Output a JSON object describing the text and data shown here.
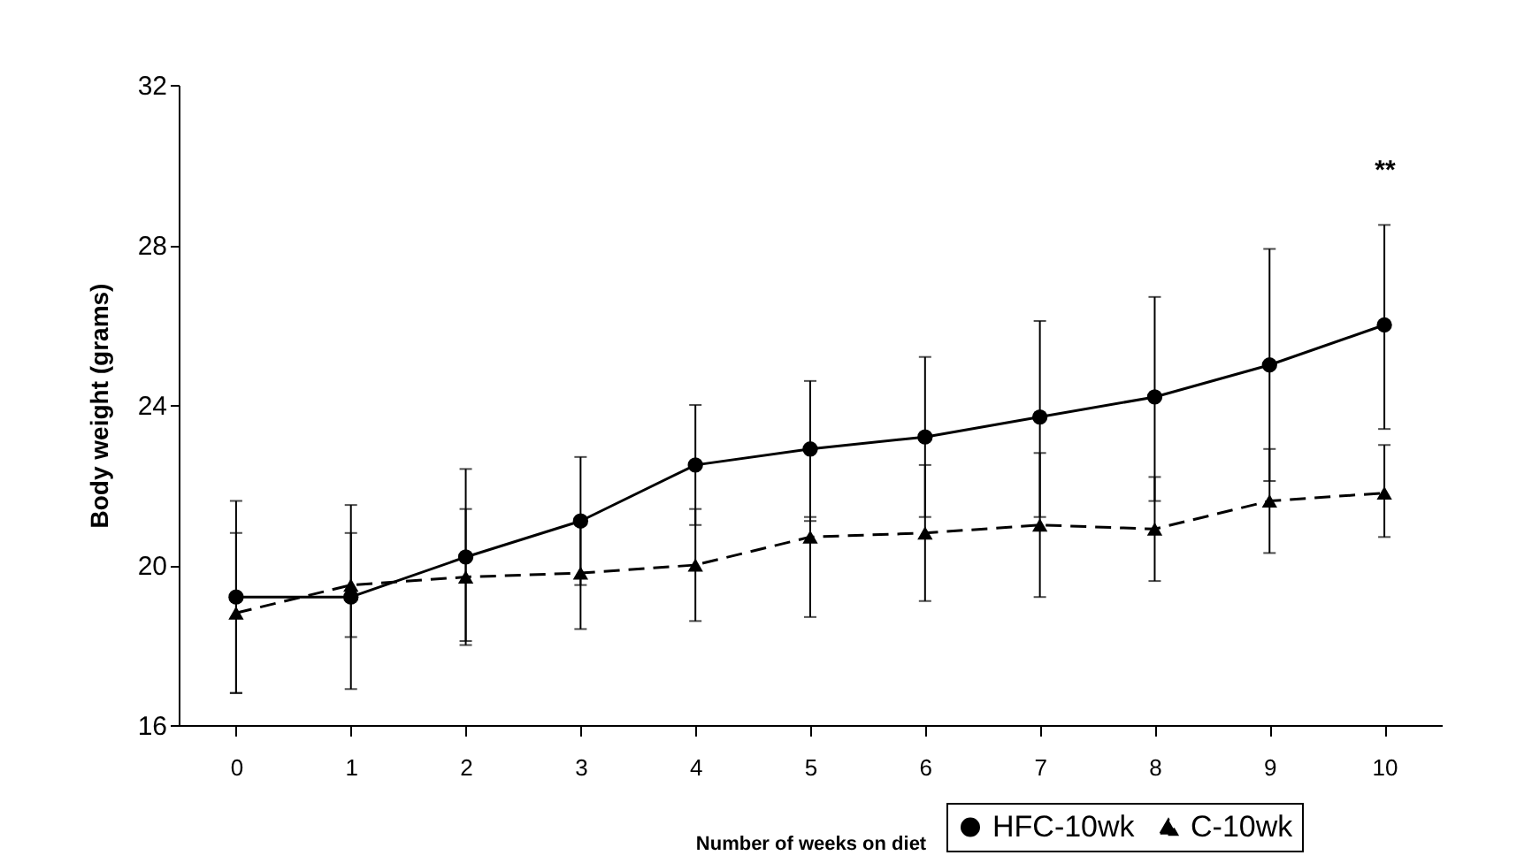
{
  "chart_data": {
    "type": "line",
    "xlabel": "Number of weeks on diet",
    "ylabel": "Body weight (grams)",
    "x": [
      0,
      1,
      2,
      3,
      4,
      5,
      6,
      7,
      8,
      9,
      10
    ],
    "xlim": [
      -0.5,
      10.5
    ],
    "xticks": [
      0,
      1,
      2,
      3,
      4,
      5,
      6,
      7,
      8,
      9,
      10
    ],
    "ylim": [
      16,
      32
    ],
    "yticks": [
      16,
      20,
      24,
      28,
      32
    ],
    "grid": false,
    "legend": "bottom right",
    "series": [
      {
        "name": "HFC-10wk",
        "color": "#000000",
        "marker": "circle",
        "line_style": "solid",
        "values": [
          19.2,
          19.2,
          20.2,
          21.1,
          22.5,
          22.9,
          23.2,
          23.7,
          24.2,
          25.0,
          26.0
        ],
        "errors": [
          [
            16.8,
            21.6
          ],
          [
            16.9,
            21.5
          ],
          [
            18.0,
            22.4
          ],
          [
            19.5,
            22.7
          ],
          [
            21.0,
            24.0
          ],
          [
            21.1,
            24.6
          ],
          [
            21.2,
            25.2
          ],
          [
            21.2,
            26.1
          ],
          [
            21.6,
            26.7
          ],
          [
            22.1,
            27.9
          ],
          [
            23.4,
            28.5
          ]
        ]
      },
      {
        "name": "C-10wk",
        "color": "#000000",
        "marker": "triangle",
        "line_style": "dashed",
        "values": [
          18.8,
          19.5,
          19.7,
          19.8,
          20.0,
          20.7,
          20.8,
          21.0,
          20.9,
          21.6,
          21.8
        ],
        "errors": [
          [
            16.8,
            20.8
          ],
          [
            18.2,
            20.8
          ],
          [
            18.1,
            21.4
          ],
          [
            18.4,
            21.0
          ],
          [
            18.6,
            21.4
          ],
          [
            18.7,
            21.2
          ],
          [
            19.1,
            22.5
          ],
          [
            19.2,
            22.8
          ],
          [
            19.6,
            22.2
          ],
          [
            20.3,
            22.9
          ],
          [
            20.7,
            23.0
          ]
        ]
      }
    ],
    "annotations": [
      "**"
    ]
  }
}
